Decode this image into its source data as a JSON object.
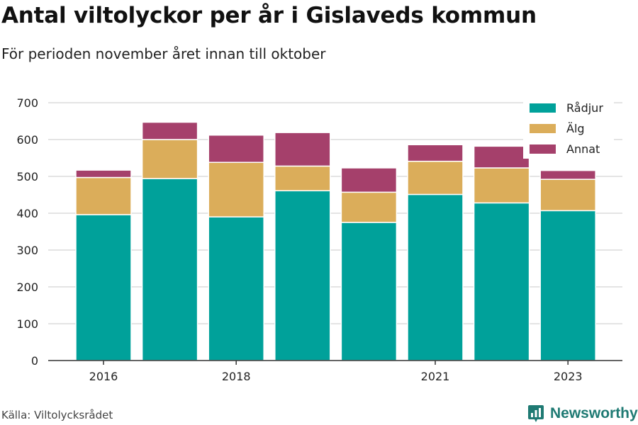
{
  "header": {
    "title": "Antal viltolyckor per år i Gislaveds kommun",
    "subtitle": "För perioden november året innan till oktober"
  },
  "footer": {
    "source": "Källa: Viltolycksrådet",
    "brand": "Newsworthy",
    "brand_icon": "bar-chart-logo-icon",
    "brand_color": "#1f7a73"
  },
  "chart_data": {
    "type": "bar",
    "stacked": true,
    "categories": [
      2016,
      2017,
      2018,
      2019,
      2020,
      2021,
      2022,
      2023
    ],
    "x_tick_labels": [
      "2016",
      "2018",
      "2021",
      "2023"
    ],
    "series": [
      {
        "name": "Rådjur",
        "color": "#00a19a",
        "values": [
          396,
          494,
          390,
          461,
          375,
          451,
          428,
          407
        ]
      },
      {
        "name": "Älg",
        "color": "#dbad5a",
        "values": [
          101,
          106,
          148,
          67,
          82,
          90,
          95,
          85
        ]
      },
      {
        "name": "Annat",
        "color": "#a5406b",
        "values": [
          20,
          47,
          74,
          91,
          66,
          45,
          59,
          24
        ]
      }
    ],
    "ylim": [
      0,
      700
    ],
    "y_ticks": [
      0,
      100,
      200,
      300,
      400,
      500,
      600,
      700
    ],
    "grid": true,
    "legend": "top-right",
    "xlabel": "",
    "ylabel": ""
  }
}
